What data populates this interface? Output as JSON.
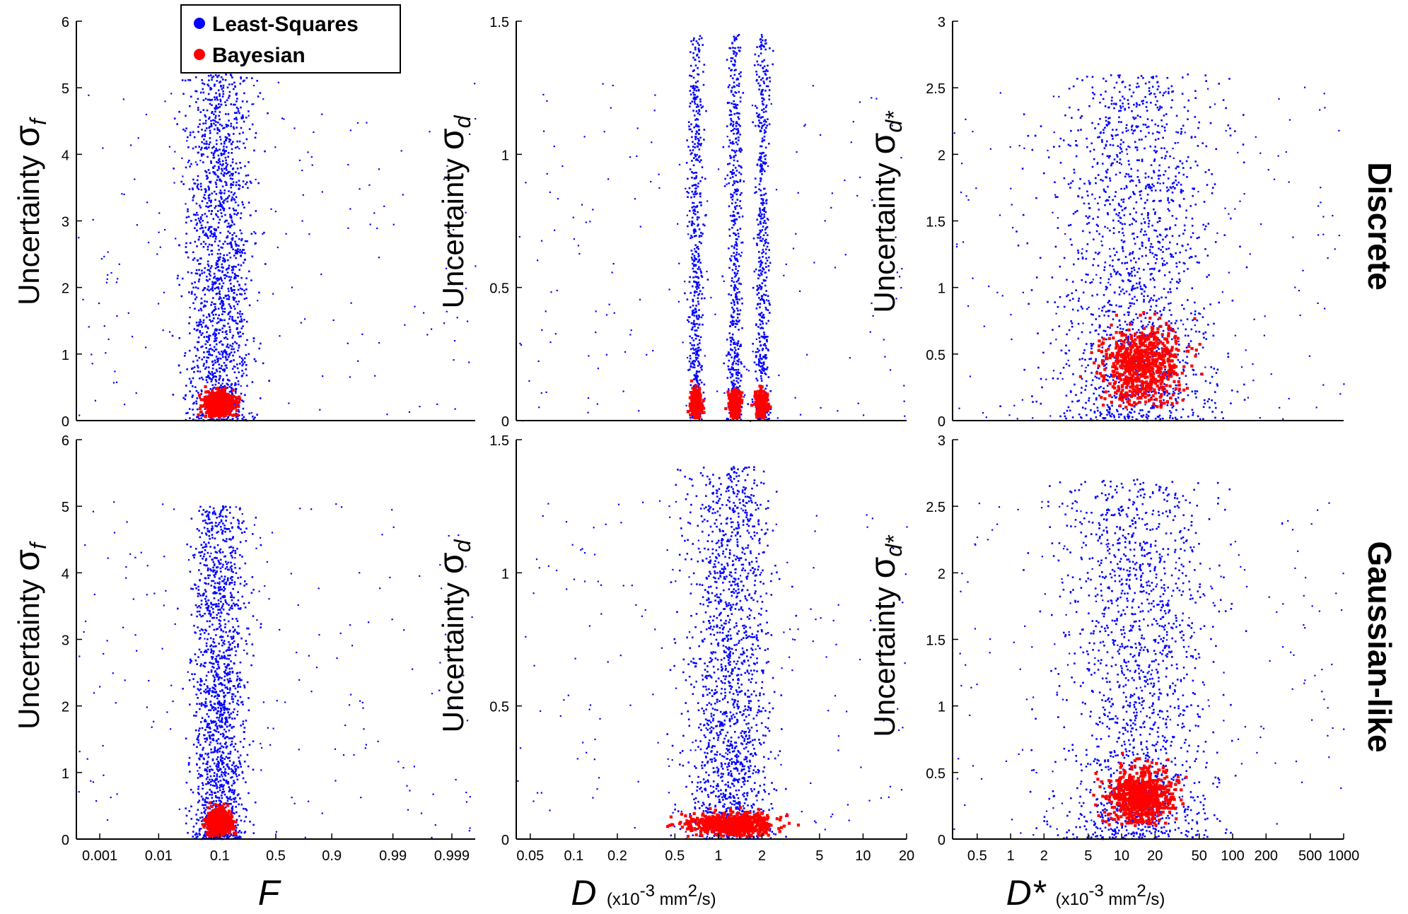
{
  "legend": {
    "entries": [
      {
        "label": "Least-Squares",
        "color": "#0000ff"
      },
      {
        "label": "Bayesian",
        "color": "#ff0000"
      }
    ]
  },
  "row_labels": [
    "Discrete",
    "Gaussian-like"
  ],
  "x_labels": [
    {
      "symbol": "F",
      "unit": ""
    },
    {
      "symbol": "D",
      "unit": "(x10",
      "unit_exp": "-3",
      "unit_mid": " mm",
      "unit_exp2": "2",
      "unit_end": "/s)"
    },
    {
      "symbol": "D*",
      "unit": "(x10",
      "unit_exp": "-3",
      "unit_mid": " mm",
      "unit_exp2": "2",
      "unit_end": "/s)"
    }
  ],
  "y_labels": [
    {
      "prefix": "Uncertainty ",
      "sigma": "σ",
      "sub": "f"
    },
    {
      "prefix": "Uncertainty ",
      "sigma": "σ",
      "sub": "d"
    },
    {
      "prefix": "Uncertainty ",
      "sigma": "σ",
      "sub": "d*"
    }
  ],
  "chart_data": [
    {
      "id": "F-discrete",
      "type": "scatter",
      "row": "Discrete",
      "xlabel": "F",
      "ylabel": "Uncertainty σf",
      "x_scale": "logit",
      "xlim": [
        0.0004,
        0.9996
      ],
      "ylim": [
        0,
        6
      ],
      "y_ticks": [
        "0",
        "1",
        "2",
        "3",
        "4",
        "5",
        "6"
      ],
      "x_ticks": [],
      "series": [
        {
          "name": "Least-Squares",
          "cluster_x": [
            0.1
          ],
          "spread_decades": 0.28,
          "y_range": [
            0,
            5.2
          ]
        },
        {
          "name": "Bayesian",
          "cluster_x": [
            0.1
          ],
          "spread_decades": 0.12,
          "y_range": [
            0.05,
            0.45
          ]
        }
      ]
    },
    {
      "id": "D-discrete",
      "type": "scatter",
      "row": "Discrete",
      "xlabel": "D",
      "ylabel": "Uncertainty σd",
      "x_scale": "log",
      "xlim": [
        0.04,
        20
      ],
      "ylim": [
        0,
        1.5
      ],
      "y_ticks": [
        "0",
        "0.5",
        "1",
        "1.5"
      ],
      "x_ticks": [],
      "series": [
        {
          "name": "Least-Squares",
          "cluster_x": [
            0.7,
            1.3,
            2.0
          ],
          "spread_decades": 0.025,
          "y_range": [
            0,
            1.45
          ]
        },
        {
          "name": "Bayesian",
          "cluster_x": [
            0.7,
            1.3,
            2.0
          ],
          "spread_decades": 0.02,
          "y_range": [
            0.01,
            0.12
          ]
        }
      ]
    },
    {
      "id": "Dstar-discrete",
      "type": "scatter",
      "row": "Discrete",
      "xlabel": "D*",
      "ylabel": "Uncertainty σd*",
      "x_scale": "log",
      "xlim": [
        0.3,
        1000
      ],
      "ylim": [
        0,
        3
      ],
      "y_ticks": [
        "0",
        "0.5",
        "1",
        "1.5",
        "2",
        "2.5",
        "3"
      ],
      "x_ticks": [],
      "series": [
        {
          "name": "Least-Squares",
          "cluster_x": [
            14
          ],
          "spread_decades": 0.35,
          "y_range": [
            0,
            2.6
          ]
        },
        {
          "name": "Bayesian",
          "cluster_x": [
            15
          ],
          "spread_decades": 0.18,
          "y_range": [
            0.1,
            0.75
          ]
        }
      ]
    },
    {
      "id": "F-gaussian",
      "type": "scatter",
      "row": "Gaussian-like",
      "xlabel": "F",
      "ylabel": "Uncertainty σf",
      "x_scale": "logit",
      "xlim": [
        0.0004,
        0.9996
      ],
      "ylim": [
        0,
        6
      ],
      "y_ticks": [
        "0",
        "1",
        "2",
        "3",
        "4",
        "5",
        "6"
      ],
      "x_ticks": [
        "0.001",
        "0.01",
        "0.1",
        "0.5",
        "0.9",
        "0.99",
        "0.999"
      ],
      "series": [
        {
          "name": "Least-Squares",
          "cluster_x": [
            0.1
          ],
          "spread_decades": 0.22,
          "y_range": [
            0,
            5.0
          ]
        },
        {
          "name": "Bayesian",
          "cluster_x": [
            0.1
          ],
          "spread_decades": 0.1,
          "y_range": [
            0.05,
            0.45
          ]
        }
      ]
    },
    {
      "id": "D-gaussian",
      "type": "scatter",
      "row": "Gaussian-like",
      "xlabel": "D",
      "ylabel": "Uncertainty σd",
      "x_scale": "log",
      "xlim": [
        0.04,
        20
      ],
      "ylim": [
        0,
        1.5
      ],
      "y_ticks": [
        "0",
        "0.5",
        "1",
        "1.5"
      ],
      "x_ticks": [
        "0.05",
        "0.1",
        "0.2",
        "0.5",
        "1",
        "2",
        "5",
        "10",
        "20"
      ],
      "series": [
        {
          "name": "Least-Squares",
          "cluster_x": [
            1.2
          ],
          "spread_decades": 0.14,
          "y_range": [
            0,
            1.4
          ]
        },
        {
          "name": "Bayesian",
          "cluster_x": [
            1.2
          ],
          "spread_decades": 0.14,
          "y_range": [
            0.01,
            0.1
          ]
        }
      ]
    },
    {
      "id": "Dstar-gaussian",
      "type": "scatter",
      "row": "Gaussian-like",
      "xlabel": "D*",
      "ylabel": "Uncertainty σd*",
      "x_scale": "log",
      "xlim": [
        0.3,
        1000
      ],
      "ylim": [
        0,
        3
      ],
      "y_ticks": [
        "0",
        "0.5",
        "1",
        "1.5",
        "2",
        "2.5",
        "3"
      ],
      "x_ticks": [
        "0.5",
        "1",
        "2",
        "5",
        "10",
        "20",
        "50",
        "100",
        "200",
        "500",
        "1000"
      ],
      "series": [
        {
          "name": "Least-Squares",
          "cluster_x": [
            14
          ],
          "spread_decades": 0.33,
          "y_range": [
            0,
            2.7
          ]
        },
        {
          "name": "Bayesian",
          "cluster_x": [
            15
          ],
          "spread_decades": 0.15,
          "y_range": [
            0.1,
            0.55
          ]
        }
      ]
    }
  ]
}
